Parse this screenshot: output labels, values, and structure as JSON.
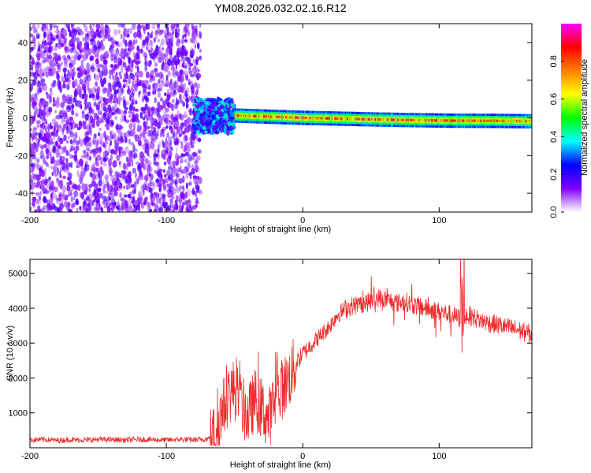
{
  "figure": {
    "title": "YM08.2026.032.02.16.R12"
  },
  "chart_data": [
    {
      "type": "heatmap",
      "xlabel": "Height of straight line (km)",
      "ylabel": "Frequency (Hz)",
      "xlim": [
        -200,
        168
      ],
      "ylim": [
        -50,
        50
      ],
      "xticks": [
        -200,
        -100,
        0,
        100
      ],
      "yticks": [
        -40,
        -20,
        0,
        20,
        40
      ],
      "grid": false,
      "colorbar": {
        "label": "Normalized spectral amplitude",
        "range": [
          0,
          1
        ],
        "ticks": [
          0.0,
          0.2,
          0.4,
          0.6,
          0.8
        ],
        "colors": [
          "#ffffff",
          "#7f00ff",
          "#0000ff",
          "#00ffff",
          "#00ff00",
          "#ffff00",
          "#ff7f00",
          "#ff0000",
          "#ff00ff"
        ]
      },
      "regions": [
        {
          "x_range": [
            -200,
            -75
          ],
          "freq_range": [
            -50,
            50
          ],
          "amplitude": 0.1
        },
        {
          "x_range": [
            -80,
            -50
          ],
          "freq_range": [
            -8,
            10
          ],
          "amplitude": 0.3
        },
        {
          "x_range": [
            -50,
            168
          ],
          "freq_range": [
            -4,
            4
          ],
          "amplitude": 0.65
        }
      ],
      "band_center": [
        {
          "x": -60,
          "f": 1.5
        },
        {
          "x": -40,
          "f": 1.0
        },
        {
          "x": -20,
          "f": 0.5
        },
        {
          "x": 0,
          "f": 0.0
        },
        {
          "x": 20,
          "f": -0.3
        },
        {
          "x": 50,
          "f": -0.8
        },
        {
          "x": 80,
          "f": -1.2
        },
        {
          "x": 110,
          "f": -1.5
        },
        {
          "x": 140,
          "f": -1.6
        },
        {
          "x": 168,
          "f": -1.8
        }
      ]
    },
    {
      "type": "line",
      "xlabel": "Height of straight line (km)",
      "ylabel": "SNR (10 * v/v)",
      "xlim": [
        -200,
        168
      ],
      "ylim": [
        0,
        5400
      ],
      "xticks": [
        -200,
        -100,
        0,
        100
      ],
      "yticks": [
        1000,
        2000,
        3000,
        4000,
        5000
      ],
      "grid": false,
      "series": [
        {
          "color": "#ee2a2a",
          "x": [
            -200,
            -190,
            -180,
            -170,
            -160,
            -150,
            -140,
            -130,
            -120,
            -110,
            -100,
            -90,
            -80,
            -70,
            -65,
            -60,
            -55,
            -50,
            -45,
            -40,
            -35,
            -30,
            -25,
            -20,
            -15,
            -10,
            -5,
            0,
            5,
            10,
            15,
            20,
            25,
            30,
            35,
            40,
            45,
            50,
            55,
            60,
            65,
            70,
            75,
            80,
            85,
            90,
            95,
            100,
            105,
            110,
            115,
            118,
            120,
            125,
            130,
            135,
            140,
            145,
            150,
            155,
            160,
            168
          ],
          "y": [
            220,
            240,
            210,
            230,
            220,
            240,
            230,
            220,
            240,
            230,
            220,
            240,
            230,
            250,
            350,
            900,
            1500,
            1700,
            1200,
            900,
            1400,
            1100,
            800,
            1400,
            1700,
            2000,
            2400,
            2700,
            2900,
            3100,
            3300,
            3500,
            3800,
            3950,
            4050,
            4100,
            4150,
            4200,
            4300,
            4250,
            4200,
            4150,
            4200,
            4100,
            4050,
            4000,
            3950,
            3900,
            3850,
            3800,
            3700,
            3500,
            3800,
            3750,
            3650,
            3600,
            3550,
            3500,
            3450,
            3400,
            3350,
            3250
          ]
        }
      ]
    }
  ]
}
